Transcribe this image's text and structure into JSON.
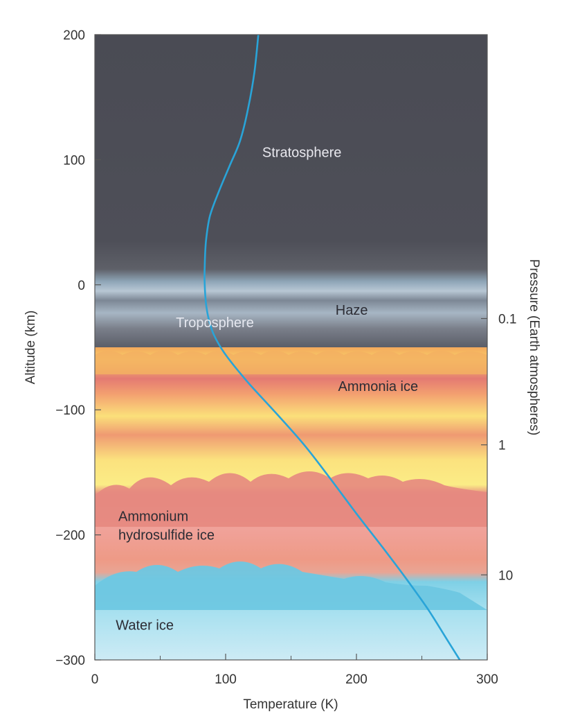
{
  "chart_data": {
    "type": "line",
    "x_axis": {
      "label": "Temperature (K)",
      "range": [
        0,
        300
      ],
      "ticks": [
        0,
        100,
        200,
        300
      ],
      "tick_labels": [
        "0",
        "100",
        "200",
        "300"
      ]
    },
    "y_axis_left": {
      "label": "Altitude (km)",
      "range": [
        -300,
        200
      ],
      "ticks": [
        200,
        100,
        0,
        -100,
        -200,
        -300
      ],
      "tick_labels": [
        "200",
        "100",
        "0",
        "−100",
        "−200",
        "−300"
      ]
    },
    "y_axis_right": {
      "label": "Pressure (Earth atmospheres)",
      "scale": "log",
      "ticks": [
        {
          "label": "0.1",
          "altitude_km": -27
        },
        {
          "label": "1",
          "altitude_km": -128
        },
        {
          "label": "10",
          "altitude_km": -232
        }
      ]
    },
    "series": [
      {
        "color": "#29a4d8",
        "points": [
          [
            125,
            200
          ],
          [
            122,
            170
          ],
          [
            117,
            140
          ],
          [
            111,
            115
          ],
          [
            103,
            95
          ],
          [
            95,
            75
          ],
          [
            88,
            55
          ],
          [
            85,
            35
          ],
          [
            84,
            15
          ],
          [
            84,
            0
          ],
          [
            85,
            -15
          ],
          [
            87,
            -27
          ],
          [
            91,
            -40
          ],
          [
            100,
            -56
          ],
          [
            117,
            -78
          ],
          [
            138,
            -102
          ],
          [
            160,
            -128
          ],
          [
            180,
            -155
          ],
          [
            200,
            -183
          ],
          [
            220,
            -210
          ],
          [
            238,
            -235
          ],
          [
            255,
            -260
          ],
          [
            270,
            -285
          ],
          [
            279,
            -300
          ]
        ]
      }
    ],
    "regions": [
      {
        "label": "Stratosphere",
        "altitude_km": 106,
        "temperature_k": 128,
        "color": "#e8e8ee"
      },
      {
        "label": "Haze",
        "altitude_km": -20,
        "temperature_k": 184,
        "color": "#2c2c34"
      },
      {
        "label": "Troposphere",
        "altitude_km": -30,
        "temperature_k": 62,
        "color": "#e6e8f0"
      },
      {
        "label": "Ammonia ice",
        "altitude_km": -81,
        "temperature_k": 186,
        "color": "#2c2c34"
      },
      {
        "label": "Ammonium",
        "altitude_km": -185,
        "temperature_k": 18,
        "color": "#2c2c34"
      },
      {
        "label": "hydrosulfide ice",
        "altitude_km": -200,
        "temperature_k": 18,
        "color": "#2c2c34"
      },
      {
        "label": "Water ice",
        "altitude_km": -272,
        "temperature_k": 16,
        "color": "#2c2c34"
      }
    ],
    "grid": false,
    "legend": "none"
  }
}
